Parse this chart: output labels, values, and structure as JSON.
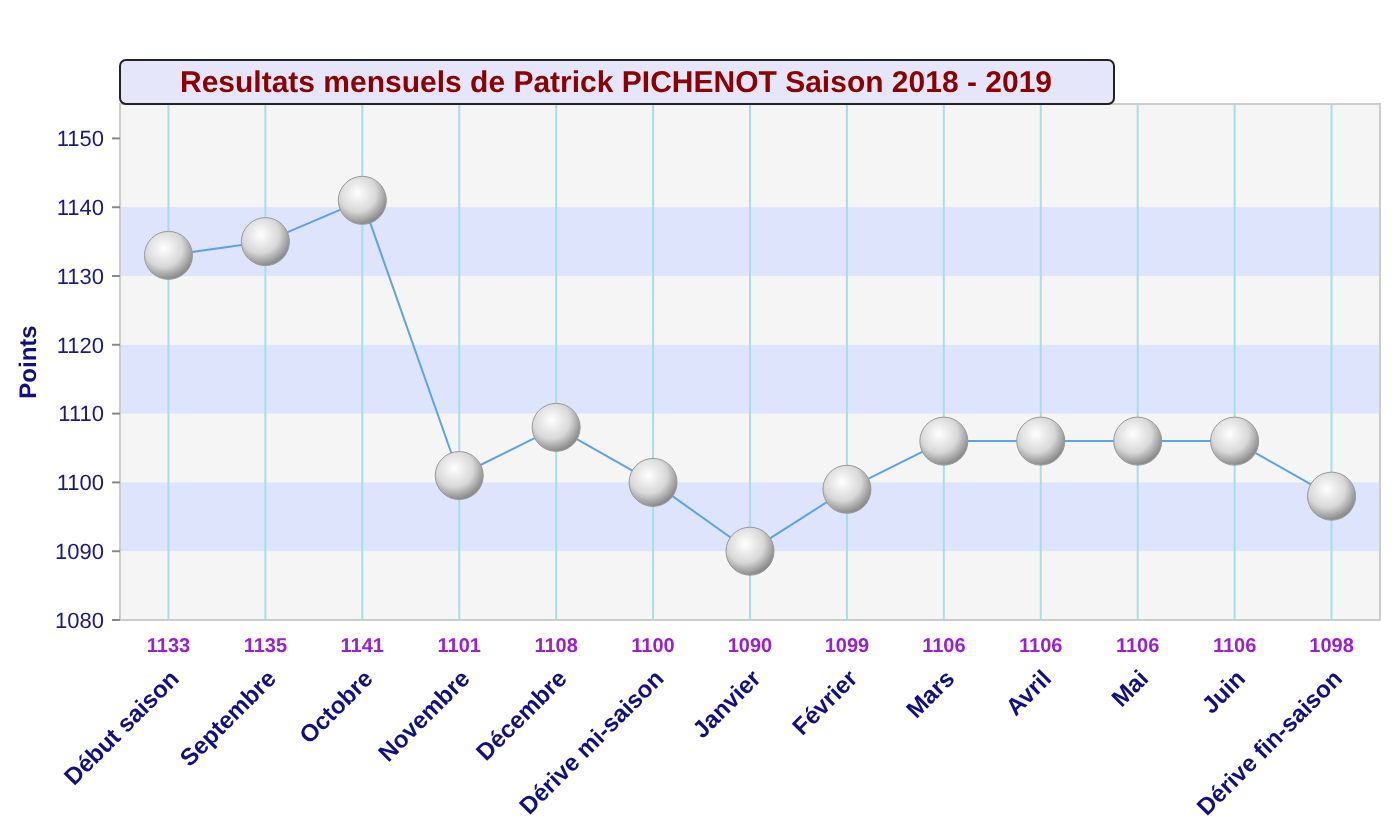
{
  "chart_data": {
    "type": "line",
    "title": "Resultats mensuels de Patrick PICHENOT Saison 2018 - 2019",
    "ylabel": "Points",
    "categories": [
      "Début saison",
      "Septembre",
      "Octobre",
      "Novembre",
      "Décembre",
      "Dérive mi-saison",
      "Janvier",
      "Février",
      "Mars",
      "Avril",
      "Mai",
      "Juin",
      "Dérive fin-saison"
    ],
    "series": [
      {
        "color": "#5ba3e8",
        "values": [
          1133,
          1135,
          1141,
          1101,
          1108,
          1100,
          1090,
          1099,
          1106,
          1106,
          1106,
          1106,
          1098
        ]
      }
    ],
    "ylim": [
      1080,
      1155
    ],
    "yticks": [
      1080,
      1090,
      1100,
      1110,
      1120,
      1130,
      1140,
      1150
    ],
    "grid": true,
    "marker": "circle",
    "data_labels": true
  }
}
